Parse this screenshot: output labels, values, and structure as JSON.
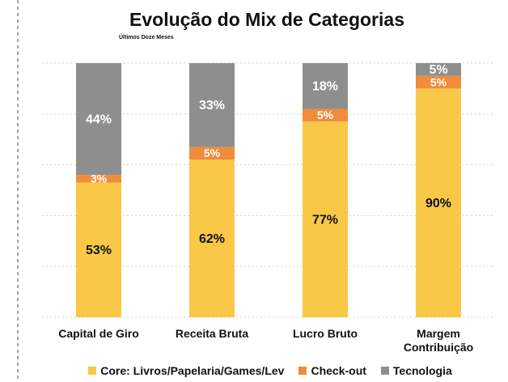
{
  "chart_data": {
    "type": "stacked_bar",
    "title": "Evolução do Mix de Categorias",
    "subtitle": "Últimos Doze Meses",
    "categories": [
      "Capital de Giro",
      "Receita Bruta",
      "Lucro Bruto",
      "Margem Contribuição"
    ],
    "series": [
      {
        "name": "Core: Livros/Papelaria/Games/Lev",
        "color": "#f9c846",
        "values": [
          53,
          62,
          77,
          90
        ],
        "value_labels": [
          "53%",
          "62%",
          "77%",
          "90%"
        ]
      },
      {
        "name": "Check-out",
        "color": "#f08c3a",
        "values": [
          3,
          5,
          5,
          5
        ],
        "value_labels": [
          "3%",
          "5%",
          "5%",
          "5%"
        ]
      },
      {
        "name": "Tecnologia",
        "color": "#8e8e8e",
        "values": [
          44,
          33,
          18,
          5
        ],
        "value_labels": [
          "44%",
          "33%",
          "18%",
          "5%"
        ]
      }
    ],
    "ylim": [
      0,
      100
    ],
    "yticks": [
      0,
      20,
      40,
      60,
      80,
      100
    ],
    "grid": true,
    "legend": "bottom"
  }
}
